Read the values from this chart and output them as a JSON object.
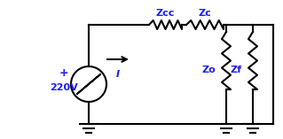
{
  "bg_color": "#ffffff",
  "text_color_blue": "#1a1aff",
  "text_color_black": "#000000",
  "wire_color": "#000000",
  "label_I": "I",
  "label_220V": "220V",
  "label_plus": "+",
  "label_Zcc": "Zcc",
  "label_Zc": "Zc",
  "label_Zo": "Zo",
  "label_Zf": "Zf",
  "figsize": [
    3.19,
    1.57
  ],
  "dpi": 100
}
